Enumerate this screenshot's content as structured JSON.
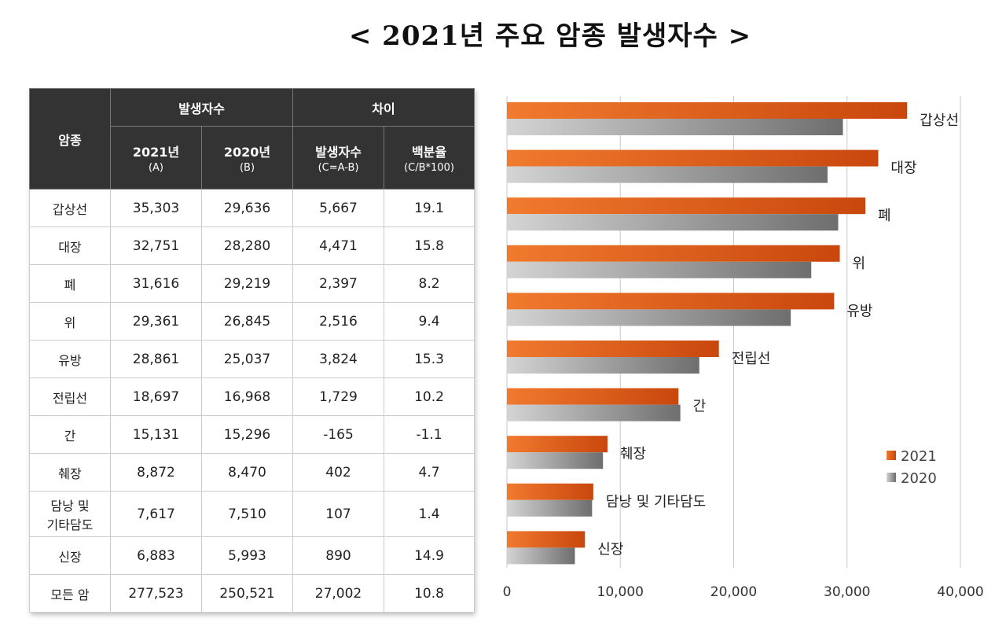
{
  "title": "< 2021년 주요 암종 발생자수 >",
  "table": {
    "header": {
      "cancer_type": "암종",
      "group_incidence": "발생자수",
      "group_difference": "차이",
      "col_2021": "2021년",
      "col_2021_sub": "(A)",
      "col_2020": "2020년",
      "col_2020_sub": "(B)",
      "col_diff": "발생자수",
      "col_diff_sub": "(C=A-B)",
      "col_pct": "백분율",
      "col_pct_sub": "(C/B*100)"
    },
    "rows": [
      [
        "갑상선",
        "35,303",
        "29,636",
        "5,667",
        "19.1"
      ],
      [
        "대장",
        "32,751",
        "28,280",
        "4,471",
        "15.8"
      ],
      [
        "폐",
        "31,616",
        "29,219",
        "2,397",
        "8.2"
      ],
      [
        "위",
        "29,361",
        "26,845",
        "2,516",
        "9.4"
      ],
      [
        "유방",
        "28,861",
        "25,037",
        "3,824",
        "15.3"
      ],
      [
        "전립선",
        "18,697",
        "16,968",
        "1,729",
        "10.2"
      ],
      [
        "간",
        "15,131",
        "15,296",
        "-165",
        "-1.1"
      ],
      [
        "췌장",
        "8,872",
        "8,470",
        "402",
        "4.7"
      ],
      [
        "담낭 및\n기타담도",
        "7,617",
        "7,510",
        "107",
        "1.4"
      ],
      [
        "신장",
        "6,883",
        "5,993",
        "890",
        "14.9"
      ],
      [
        "모든 암",
        "277,523",
        "250,521",
        "27,002",
        "10.8"
      ]
    ]
  },
  "chart_data": {
    "type": "bar",
    "orientation": "horizontal",
    "categories": [
      "갑상선",
      "대장",
      "폐",
      "위",
      "유방",
      "전립선",
      "간",
      "췌장",
      "담낭 및 기타담도",
      "신장"
    ],
    "series": [
      {
        "name": "2021",
        "values": [
          35303,
          32751,
          31616,
          29361,
          28861,
          18697,
          15131,
          8872,
          7617,
          6883
        ],
        "color": "#e8621e"
      },
      {
        "name": "2020",
        "values": [
          29636,
          28280,
          29219,
          26845,
          25037,
          16968,
          15296,
          8470,
          7510,
          5993
        ],
        "color": "#8a8a8a"
      }
    ],
    "xlim": [
      0,
      40000
    ],
    "xticks": [
      "0",
      "10,000",
      "20,000",
      "30,000",
      "40,000"
    ],
    "xtick_values": [
      0,
      10000,
      20000,
      30000,
      40000
    ],
    "grid": true,
    "legend": "right"
  }
}
